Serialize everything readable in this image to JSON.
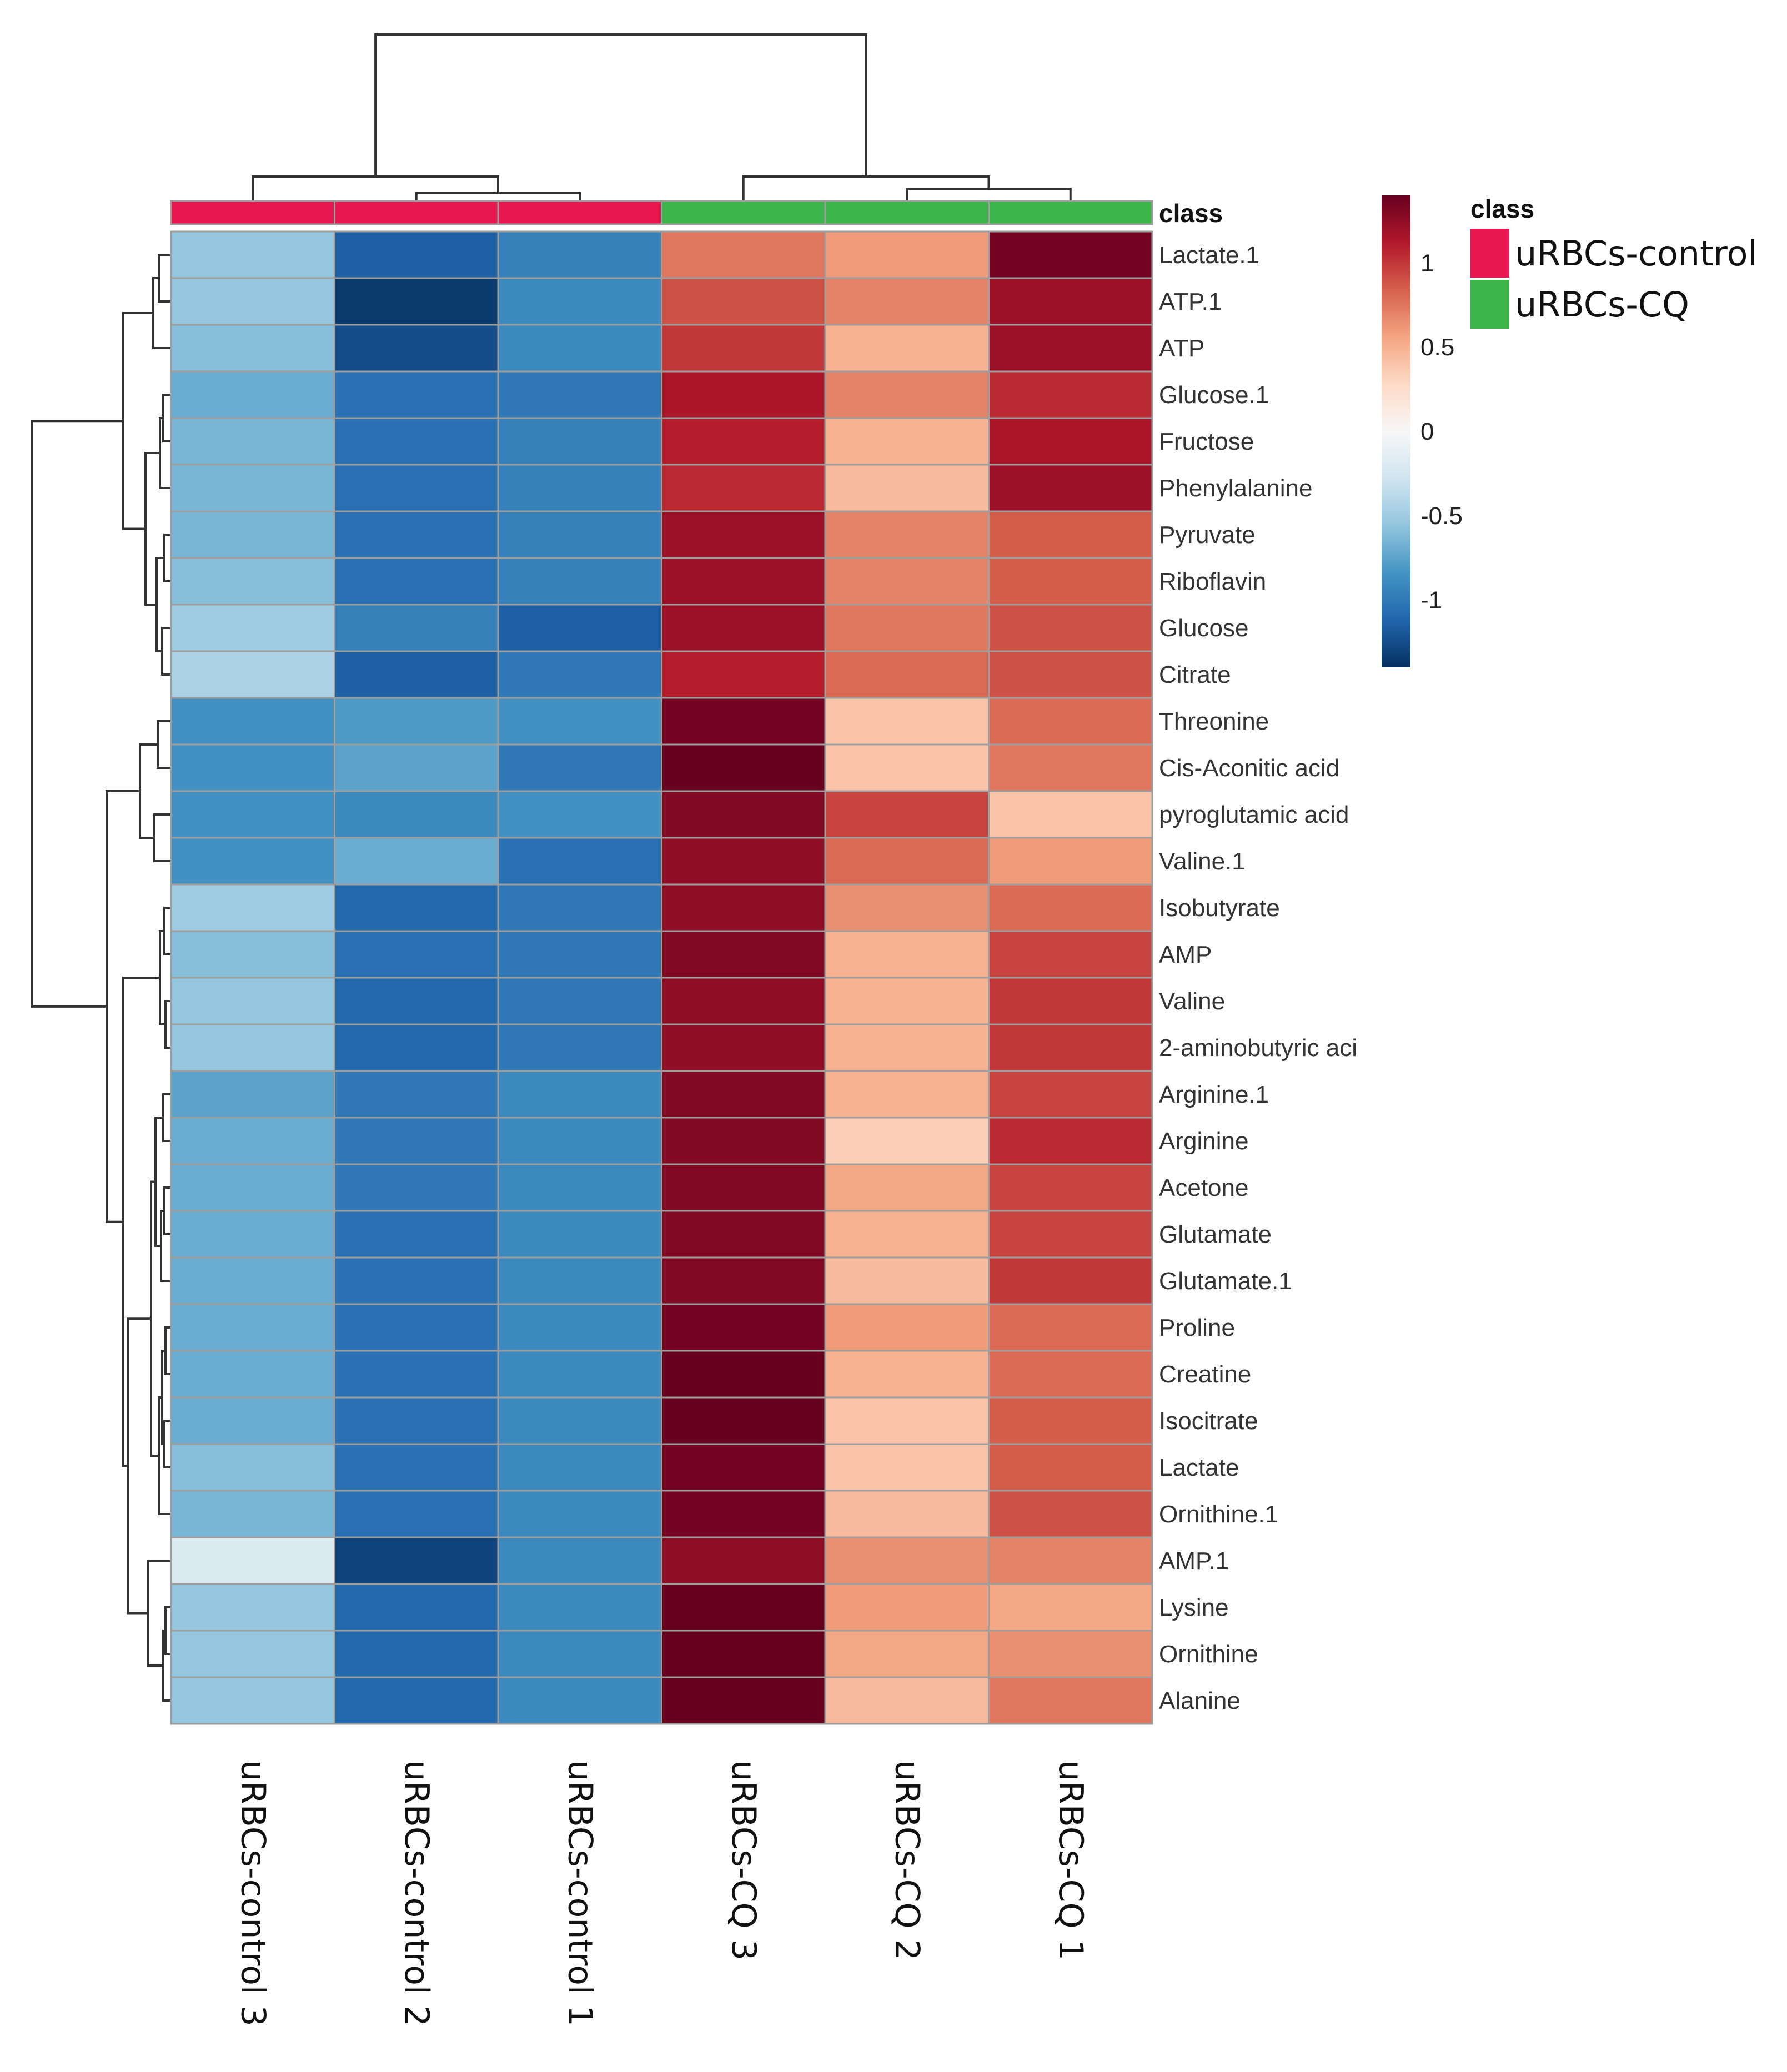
{
  "chart_data": {
    "type": "heatmap",
    "title": "",
    "columns": [
      "uRBCs-control 3",
      "uRBCs-control 2",
      "uRBCs-control 1",
      "uRBCs-CQ 3",
      "uRBCs-CQ 2",
      "uRBCs-CQ 1"
    ],
    "column_class": [
      "uRBCs-control",
      "uRBCs-control",
      "uRBCs-control",
      "uRBCs-CQ",
      "uRBCs-CQ",
      "uRBCs-CQ"
    ],
    "class_bar_label": "class",
    "rows": [
      "Lactate.1",
      "ATP.1",
      "ATP",
      "Glucose.1",
      "Fructose",
      "Phenylalanine",
      "Pyruvate",
      "Riboflavin",
      "Glucose",
      "Citrate",
      "Threonine",
      "Cis-Aconitic acid",
      "pyroglutamic acid",
      "Valine.1",
      "Isobutyrate",
      "AMP",
      "Valine",
      "2-aminobutyric aci",
      "Arginine.1",
      "Arginine",
      "Acetone",
      "Glutamate",
      "Glutamate.1",
      "Proline",
      "Creatine",
      "Isocitrate",
      "Lactate",
      "Ornithine.1",
      "AMP.1",
      "Lysine",
      "Ornithine",
      "Alanine"
    ],
    "values": [
      [
        -0.55,
        -1.15,
        -0.95,
        0.75,
        0.6,
        1.35
      ],
      [
        -0.55,
        -1.35,
        -0.9,
        0.9,
        0.7,
        1.2
      ],
      [
        -0.6,
        -1.25,
        -0.9,
        1.0,
        0.5,
        1.2
      ],
      [
        -0.7,
        -1.05,
        -1.0,
        1.15,
        0.7,
        1.05
      ],
      [
        -0.65,
        -1.05,
        -0.95,
        1.1,
        0.5,
        1.15
      ],
      [
        -0.65,
        -1.05,
        -0.95,
        1.05,
        0.45,
        1.2
      ],
      [
        -0.65,
        -1.05,
        -0.95,
        1.2,
        0.7,
        0.85
      ],
      [
        -0.6,
        -1.05,
        -0.95,
        1.2,
        0.7,
        0.85
      ],
      [
        -0.5,
        -0.95,
        -1.15,
        1.2,
        0.75,
        0.9
      ],
      [
        -0.45,
        -1.15,
        -1.0,
        1.1,
        0.8,
        0.9
      ],
      [
        -0.85,
        -0.8,
        -0.85,
        1.35,
        0.4,
        0.8
      ],
      [
        -0.85,
        -0.75,
        -1.0,
        1.45,
        0.4,
        0.75
      ],
      [
        -0.85,
        -0.9,
        -0.85,
        1.3,
        0.95,
        0.4
      ],
      [
        -0.85,
        -0.7,
        -1.05,
        1.25,
        0.8,
        0.6
      ],
      [
        -0.5,
        -1.1,
        -1.0,
        1.25,
        0.65,
        0.8
      ],
      [
        -0.6,
        -1.05,
        -1.0,
        1.3,
        0.5,
        0.95
      ],
      [
        -0.55,
        -1.1,
        -1.0,
        1.25,
        0.5,
        1.0
      ],
      [
        -0.55,
        -1.1,
        -1.0,
        1.25,
        0.5,
        1.0
      ],
      [
        -0.75,
        -1.0,
        -0.9,
        1.3,
        0.5,
        0.95
      ],
      [
        -0.7,
        -1.0,
        -0.9,
        1.3,
        0.35,
        1.05
      ],
      [
        -0.7,
        -1.0,
        -0.9,
        1.3,
        0.55,
        0.95
      ],
      [
        -0.7,
        -1.05,
        -0.9,
        1.3,
        0.5,
        0.95
      ],
      [
        -0.7,
        -1.05,
        -0.9,
        1.3,
        0.45,
        1.0
      ],
      [
        -0.7,
        -1.05,
        -0.9,
        1.35,
        0.6,
        0.8
      ],
      [
        -0.7,
        -1.05,
        -0.9,
        1.4,
        0.5,
        0.8
      ],
      [
        -0.7,
        -1.05,
        -0.9,
        1.4,
        0.4,
        0.85
      ],
      [
        -0.6,
        -1.05,
        -0.9,
        1.35,
        0.4,
        0.85
      ],
      [
        -0.65,
        -1.05,
        -0.9,
        1.35,
        0.45,
        0.9
      ],
      [
        -0.2,
        -1.3,
        -0.9,
        1.25,
        0.65,
        0.7
      ],
      [
        -0.55,
        -1.1,
        -0.9,
        1.5,
        0.6,
        0.55
      ],
      [
        -0.55,
        -1.1,
        -0.9,
        1.5,
        0.55,
        0.65
      ],
      [
        -0.55,
        -1.1,
        -0.9,
        1.5,
        0.45,
        0.75
      ]
    ],
    "color_scale": {
      "ticks": [
        1,
        0.5,
        0,
        -0.5,
        -1
      ],
      "tick_labels": [
        "1",
        "0.5",
        "0",
        "-0.5",
        "-1"
      ],
      "range": [
        -1.4,
        1.4
      ],
      "colors": [
        "#053061",
        "#2166ac",
        "#4393c3",
        "#92c5de",
        "#d1e5f0",
        "#f7f7f7",
        "#fddbc7",
        "#f4a582",
        "#d6604d",
        "#b2182b",
        "#67001f"
      ]
    },
    "class_legend": {
      "title": "class",
      "entries": [
        {
          "label": "uRBCs-control",
          "color": "#e8174f"
        },
        {
          "label": "uRBCs-CQ",
          "color": "#3cb64a"
        }
      ]
    },
    "row_dendrogram": true,
    "column_dendrogram": true
  }
}
